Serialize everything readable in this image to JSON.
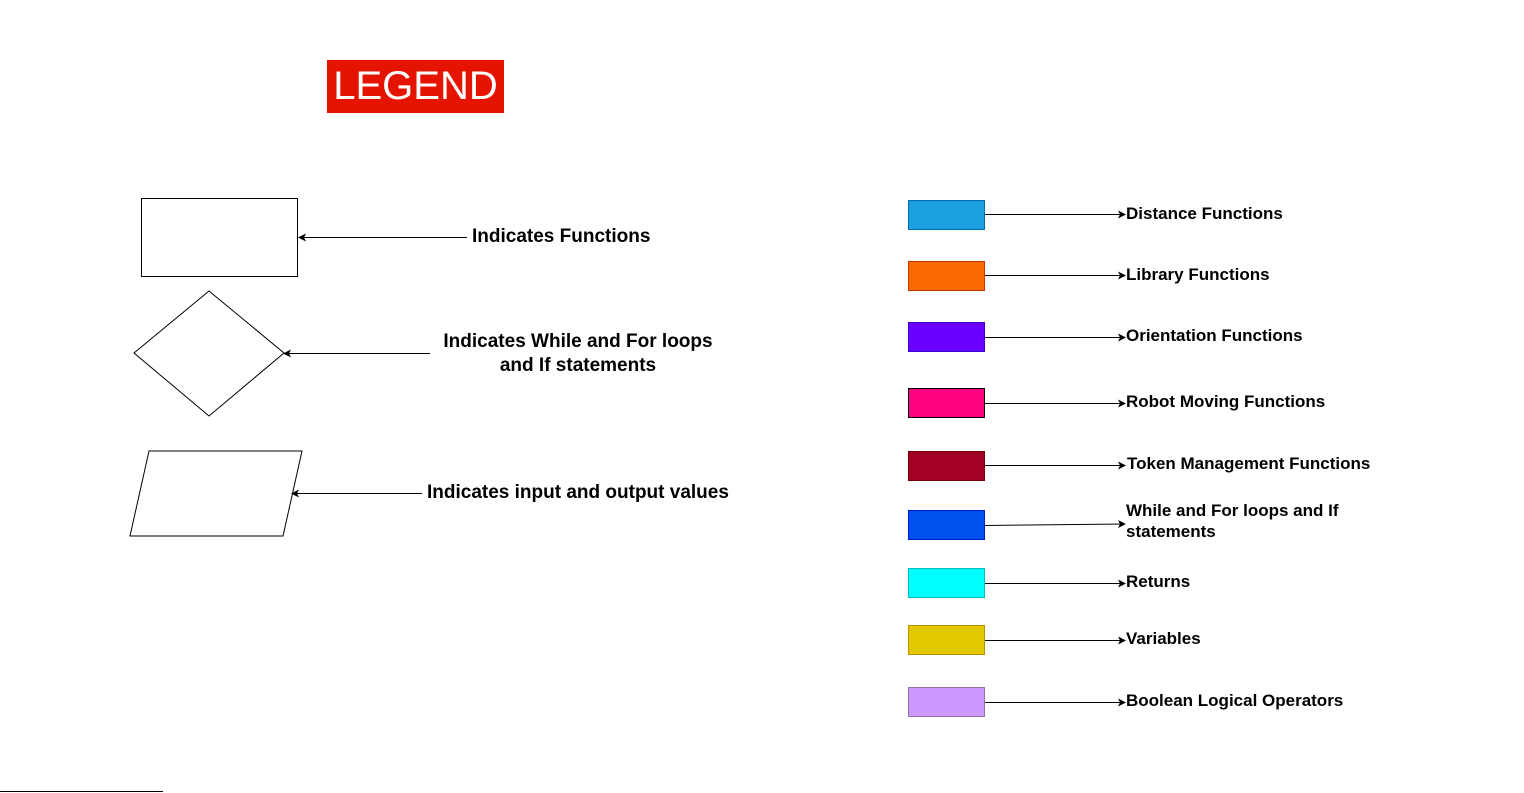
{
  "title": "LEGEND",
  "shapes": [
    {
      "shape": "rectangle",
      "label": "Indicates Functions"
    },
    {
      "shape": "diamond",
      "label_line1": "Indicates While and For loops",
      "label_line2": "and If statements"
    },
    {
      "shape": "parallelogram",
      "label": "Indicates input and output values"
    }
  ],
  "colors": [
    {
      "label": "Distance Functions",
      "color": "#1ba1e2"
    },
    {
      "label": "Library Functions",
      "color": "#fa6800"
    },
    {
      "label": "Orientation Functions",
      "color": "#6a00ff"
    },
    {
      "label": "Robot Moving Functions",
      "color": "#ff0080"
    },
    {
      "label": "Token Management Functions",
      "color": "#a20025"
    },
    {
      "label_line1": "While and For loops and If",
      "label_line2": "statements",
      "color": "#0050ef"
    },
    {
      "label": "Returns",
      "color": "#00ffff"
    },
    {
      "label": "Variables",
      "color": "#e3c800"
    },
    {
      "label": "Boolean Logical Operators",
      "color": "#cc99ff"
    }
  ]
}
